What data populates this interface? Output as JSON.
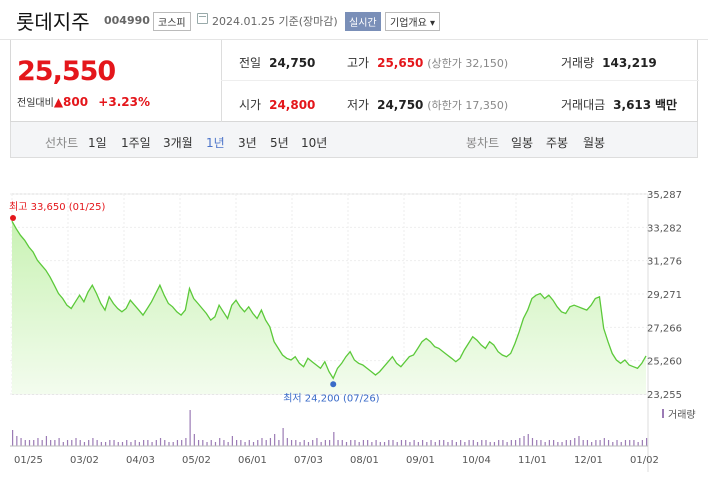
{
  "header": {
    "stock_name": "롯데지주",
    "stock_code": "004990",
    "market": "코스피",
    "date": "2024.01.25",
    "date_suffix": "기준(장마감)",
    "realtime_label": "실시간",
    "company_info_label": "기업개요 ▾"
  },
  "summary": {
    "price": "25,550",
    "change_label": "전일대비",
    "change_arrow": "▲",
    "change_value": "800",
    "change_pct": "+3.23%",
    "prev_label": "전일",
    "prev_value": "24,750",
    "high_label": "고가",
    "high_value": "25,650",
    "upper_limit": "(상한가 32,150)",
    "volume_label": "거래량",
    "volume_value": "143,219",
    "open_label": "시가",
    "open_value": "24,800",
    "low_label": "저가",
    "low_value": "24,750",
    "lower_limit": "(하한가 17,350)",
    "amount_label": "거래대금",
    "amount_value": "3,613",
    "amount_unit": "백만"
  },
  "toolbar": {
    "line_chart_label": "선차트",
    "periods": [
      "1일",
      "1주일",
      "3개월",
      "1년",
      "3년",
      "5년",
      "10년"
    ],
    "selected_period": "1년",
    "candle_chart_label": "봉차트",
    "candle_periods": [
      "일봉",
      "주봉",
      "월봉"
    ]
  },
  "colors": {
    "accent_red": "#e4161b",
    "selected_blue": "#4c74c9",
    "line_green": "#5cc93a",
    "area_green": "#c9f2b4",
    "volume_purple": "#9b7bb5"
  },
  "chart_data": {
    "type": "area",
    "y_ticks": [
      "35,287",
      "33,282",
      "31,276",
      "29,271",
      "27,266",
      "25,260",
      "23,255"
    ],
    "ylim": [
      23255,
      35287
    ],
    "x_ticks": [
      "01/25",
      "03/02",
      "04/03",
      "05/02",
      "06/01",
      "07/03",
      "08/01",
      "09/01",
      "10/04",
      "11/01",
      "12/01",
      "01/02"
    ],
    "high_annotation": "최고 33,650 (01/25)",
    "low_annotation": "최저 24,200 (07/26)",
    "volume_legend": "거래량",
    "values": [
      33650,
      33200,
      32800,
      32500,
      32100,
      31800,
      31300,
      31000,
      30700,
      30300,
      29800,
      29300,
      29000,
      28600,
      28400,
      28800,
      29200,
      28800,
      29400,
      29800,
      29300,
      28700,
      28300,
      29100,
      28700,
      28400,
      28200,
      28400,
      28900,
      28600,
      28300,
      28000,
      28400,
      28800,
      29300,
      29800,
      29200,
      28700,
      28500,
      28200,
      28000,
      28300,
      29600,
      29000,
      28700,
      28400,
      28100,
      27700,
      27900,
      28600,
      28200,
      27800,
      28600,
      28900,
      28500,
      28200,
      28500,
      28100,
      27800,
      28300,
      27700,
      27300,
      26400,
      26000,
      25600,
      25400,
      25300,
      25500,
      25100,
      24900,
      25400,
      25200,
      25000,
      24800,
      25200,
      24600,
      24200,
      24800,
      25100,
      25500,
      25800,
      25300,
      25100,
      25000,
      24800,
      24600,
      24400,
      24600,
      24900,
      25200,
      25500,
      25100,
      24900,
      25200,
      25500,
      25600,
      26000,
      26400,
      26600,
      26400,
      26100,
      26000,
      25800,
      25600,
      25400,
      25200,
      25400,
      25900,
      26300,
      26700,
      26500,
      26200,
      26000,
      26400,
      26200,
      25800,
      25600,
      25500,
      25700,
      26300,
      27000,
      27800,
      28300,
      29000,
      29200,
      29300,
      29000,
      29200,
      28900,
      28500,
      28200,
      28100,
      28500,
      28600,
      28500,
      28400,
      28300,
      28600,
      29000,
      29100,
      27200,
      26400,
      25700,
      25300,
      25100,
      25300,
      25000,
      24900,
      24800,
      25100,
      25550
    ],
    "volumes": [
      8,
      5,
      4,
      3,
      3,
      3,
      4,
      3,
      5,
      3,
      3,
      4,
      2,
      3,
      3,
      4,
      3,
      2,
      3,
      4,
      3,
      2,
      2,
      3,
      3,
      2,
      2,
      3,
      2,
      3,
      2,
      3,
      3,
      2,
      3,
      4,
      3,
      2,
      2,
      3,
      3,
      4,
      18,
      6,
      3,
      3,
      2,
      3,
      2,
      4,
      3,
      2,
      5,
      3,
      3,
      2,
      3,
      2,
      3,
      4,
      3,
      4,
      6,
      3,
      9,
      4,
      3,
      3,
      2,
      3,
      2,
      3,
      4,
      2,
      3,
      3,
      7,
      3,
      3,
      2,
      3,
      3,
      2,
      3,
      3,
      2,
      3,
      2,
      2,
      3,
      3,
      2,
      3,
      3,
      2,
      3,
      2,
      3,
      2,
      3,
      2,
      3,
      3,
      2,
      3,
      2,
      3,
      2,
      3,
      3,
      2,
      3,
      3,
      2,
      2,
      3,
      3,
      2,
      3,
      3,
      4,
      5,
      6,
      4,
      3,
      3,
      2,
      3,
      3,
      2,
      2,
      3,
      3,
      4,
      5,
      3,
      3,
      2,
      3,
      3,
      4,
      3,
      2,
      3,
      2,
      3,
      3,
      3,
      2,
      3,
      4
    ]
  }
}
